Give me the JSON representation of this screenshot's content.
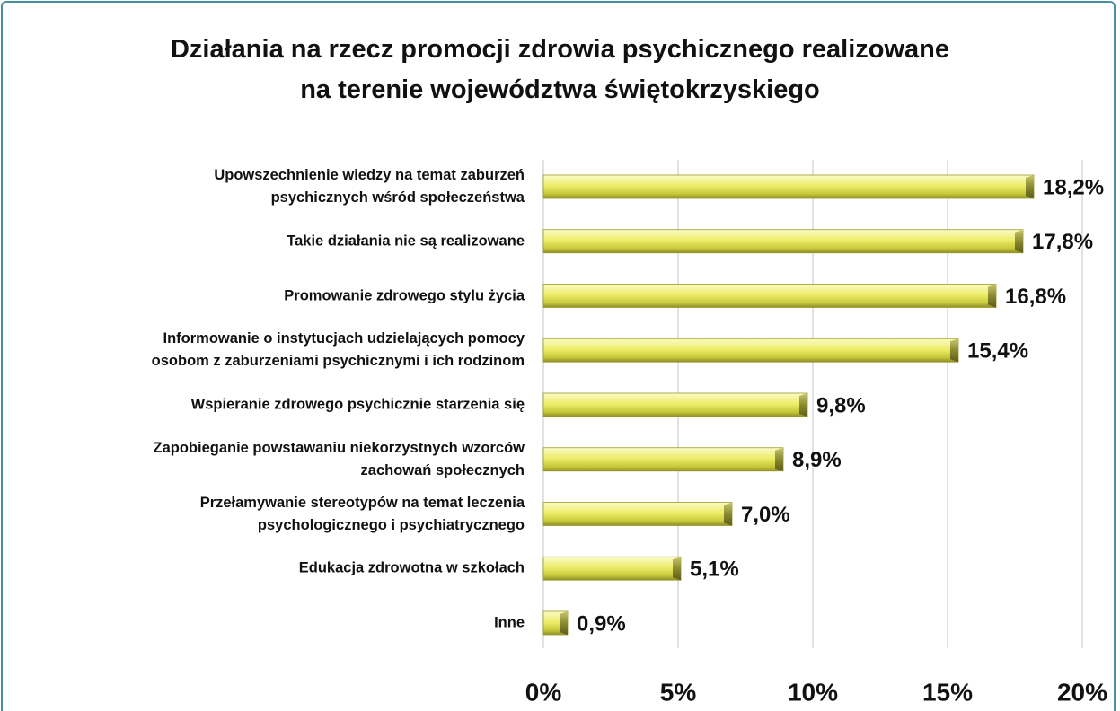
{
  "chart_data": {
    "type": "bar",
    "orientation": "horizontal",
    "title": "Działania na rzecz promocji zdrowia psychicznego realizowane\nna terenie województwa świętokrzyskiego",
    "categories": [
      "Upowszechnienie wiedzy na temat zaburzeń\npsychicznych wśród społeczeństwa",
      "Takie działania nie są realizowane",
      "Promowanie zdrowego stylu życia",
      "Informowanie o instytucjach udzielających pomocy\nosobom z zaburzeniami psychicznymi i ich rodzinom",
      "Wspieranie zdrowego psychicznie starzenia się",
      "Zapobieganie powstawaniu niekorzystnych wzorców\nzachowań społecznych",
      "Przełamywanie stereotypów na temat leczenia\npsychologicznego i psychiatrycznego",
      "Edukacja zdrowotna w szkołach",
      "Inne"
    ],
    "values": [
      18.2,
      17.8,
      16.8,
      15.4,
      9.8,
      8.9,
      7.0,
      5.1,
      0.9
    ],
    "value_labels": [
      "18,2%",
      "17,8%",
      "16,8%",
      "15,4%",
      "9,8%",
      "8,9%",
      "7,0%",
      "5,1%",
      "0,9%"
    ],
    "color": "#e6e65a",
    "xlim": [
      0,
      20
    ],
    "xticks": [
      {
        "value": 0,
        "label": "0%"
      },
      {
        "value": 5,
        "label": "5%"
      },
      {
        "value": 10,
        "label": "10%"
      },
      {
        "value": 15,
        "label": "15%"
      },
      {
        "value": 20,
        "label": "20%"
      }
    ],
    "grid": true
  }
}
